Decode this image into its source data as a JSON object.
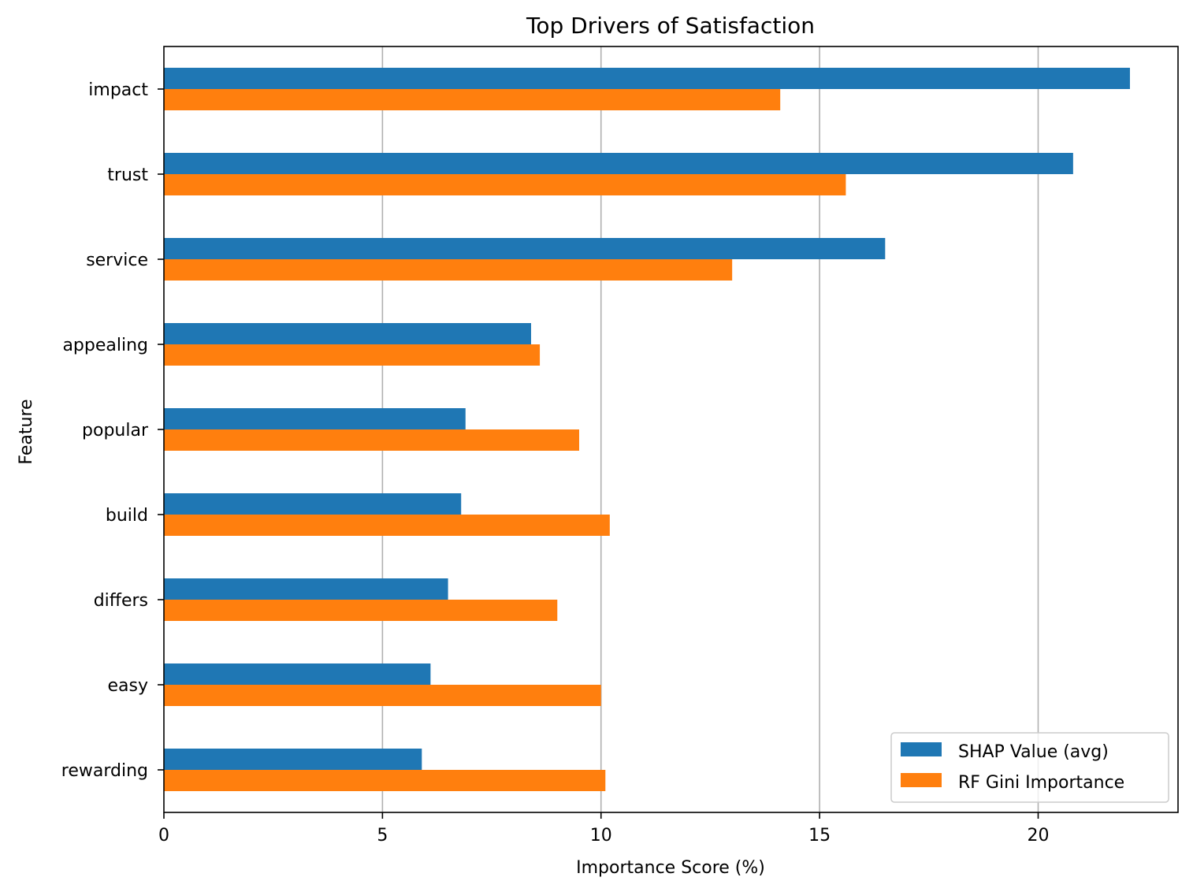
{
  "chart_data": {
    "type": "bar",
    "orientation": "horizontal",
    "title": "Top Drivers of Satisfaction",
    "xlabel": "Importance Score (%)",
    "ylabel": "Feature",
    "xlim": [
      0,
      23.2
    ],
    "xticks": [
      0,
      5,
      10,
      15,
      20
    ],
    "grid": "x",
    "legend_position": "lower-right",
    "categories": [
      "impact",
      "trust",
      "service",
      "appealing",
      "popular",
      "build",
      "differs",
      "easy",
      "rewarding"
    ],
    "series": [
      {
        "name": "SHAP Value (avg)",
        "color": "#1f77b4",
        "values": [
          22.1,
          20.8,
          16.5,
          8.4,
          6.9,
          6.8,
          6.5,
          6.1,
          5.9
        ]
      },
      {
        "name": "RF Gini Importance",
        "color": "#ff7f0e",
        "values": [
          14.1,
          15.6,
          13.0,
          8.6,
          9.5,
          10.2,
          9.0,
          10.0,
          10.1
        ]
      }
    ]
  }
}
